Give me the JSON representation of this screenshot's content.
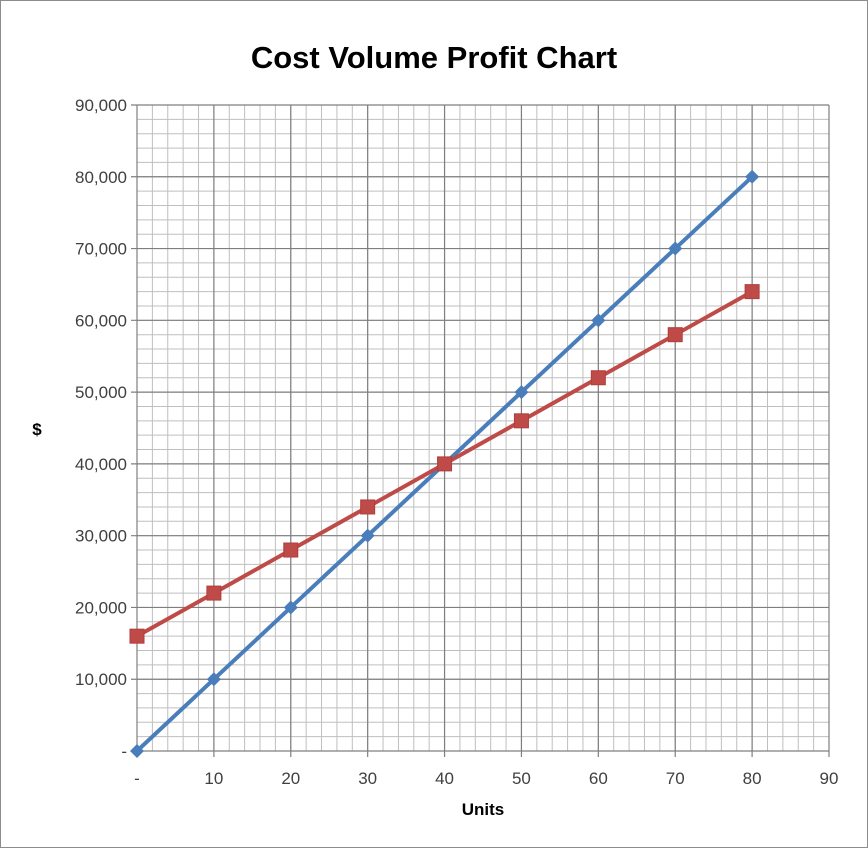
{
  "chart_data": {
    "type": "line",
    "title": "Cost Volume Profit Chart",
    "xlabel": "Units",
    "ylabel": "$",
    "xlim": [
      0,
      90
    ],
    "ylim": [
      0,
      90000
    ],
    "grid": true,
    "minor_grid": true,
    "legend": "none",
    "x_ticks": [
      0,
      10,
      20,
      30,
      40,
      50,
      60,
      70,
      80,
      90
    ],
    "x_tick_labels": [
      "-",
      "10",
      "20",
      "30",
      "40",
      "50",
      "60",
      "70",
      "80",
      "90"
    ],
    "y_ticks": [
      0,
      10000,
      20000,
      30000,
      40000,
      50000,
      60000,
      70000,
      80000,
      90000
    ],
    "y_tick_labels": [
      "-",
      "10,000",
      "20,000",
      "30,000",
      "40,000",
      "50,000",
      "60,000",
      "70,000",
      "80,000",
      "90,000"
    ],
    "x": [
      0,
      10,
      20,
      30,
      40,
      50,
      60,
      70,
      80
    ],
    "series": [
      {
        "color": "#4a7ebb",
        "marker": "diamond",
        "values": [
          0,
          10000,
          20000,
          30000,
          40000,
          50000,
          60000,
          70000,
          80000
        ]
      },
      {
        "color": "#be4b48",
        "marker": "square",
        "values": [
          16000,
          22000,
          28000,
          34000,
          40000,
          46000,
          52000,
          58000,
          64000
        ]
      }
    ]
  }
}
